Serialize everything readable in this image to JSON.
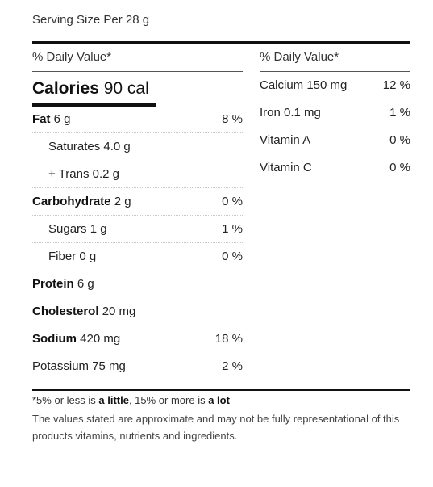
{
  "serving": "Serving Size Per 28 g",
  "left": {
    "dv_header": "% Daily Value*",
    "calories_label": "Calories",
    "calories_value": "90 cal",
    "rows": [
      {
        "label": "Fat",
        "amount": "6 g",
        "pct": "8 %"
      },
      {
        "label": "Saturates 4.0 g",
        "pct": ""
      },
      {
        "label": "+ Trans 0.2 g",
        "pct": ""
      },
      {
        "label": "Carbohydrate",
        "amount": "2 g",
        "pct": "0 %"
      },
      {
        "label": "Sugars 1 g",
        "pct": "1 %"
      },
      {
        "label": "Fiber 0 g",
        "pct": "0 %"
      },
      {
        "label": "Protein",
        "amount": "6 g",
        "pct": ""
      },
      {
        "label": "Cholesterol",
        "amount": "20 mg",
        "pct": ""
      },
      {
        "label": "Sodium",
        "amount": "420 mg",
        "pct": "18 %"
      },
      {
        "label": "Potassium 75 mg",
        "pct": "2 %"
      }
    ]
  },
  "right": {
    "dv_header": "% Daily Value*",
    "rows": [
      {
        "label": "Calcium 150 mg",
        "pct": "12 %"
      },
      {
        "label": "Iron 0.1 mg",
        "pct": "1 %"
      },
      {
        "label": "Vitamin A",
        "pct": "0 %"
      },
      {
        "label": "Vitamin C",
        "pct": "0 %"
      }
    ]
  },
  "footnote": {
    "prefix": "*5% or less is ",
    "little": "a little",
    "middle": ", 15% or more is ",
    "lot": "a lot",
    "disclaimer": "The values stated are approximate and may not be fully representational of this products vitamins, nutrients and ingredients."
  }
}
